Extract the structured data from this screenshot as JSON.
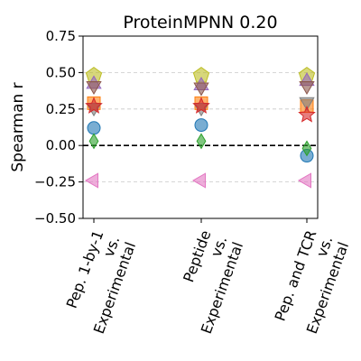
{
  "chart_data": {
    "type": "scatter",
    "title": "ProteinMPNN 0.20",
    "ylabel": "Spearman r",
    "xlabel": "",
    "ylim": [
      -0.5,
      0.75
    ],
    "yticks": [
      -0.5,
      -0.25,
      0.0,
      0.25,
      0.5,
      0.75
    ],
    "ytick_labels": [
      "−0.50",
      "−0.25",
      "0.00",
      "0.25",
      "0.50",
      "0.75"
    ],
    "grid": "horizontal-dashed",
    "reference_line": 0.0,
    "categories": [
      [
        "Pep. 1-by-1",
        "vs.",
        "Experimental"
      ],
      [
        "Peptide",
        "vs.",
        "Experimental"
      ],
      [
        "Pep. and TCR",
        "vs.",
        "Experimental"
      ]
    ],
    "series": [
      {
        "marker": "pentagon",
        "color": "#bcbd22",
        "values": [
          0.48,
          0.48,
          0.48
        ]
      },
      {
        "marker": "triangle-up",
        "color": "#9467bd",
        "values": [
          0.42,
          0.41,
          0.44
        ]
      },
      {
        "marker": "triangle-down",
        "color": "#8c564b",
        "values": [
          0.41,
          0.4,
          0.41
        ]
      },
      {
        "marker": "square",
        "color": "#ff7f0e",
        "values": [
          0.29,
          0.29,
          0.27
        ]
      },
      {
        "marker": "triangle-down",
        "color": "#7f7f7f",
        "values": [
          0.26,
          0.26,
          0.3
        ]
      },
      {
        "marker": "star",
        "color": "#d62728",
        "values": [
          0.27,
          0.27,
          0.21
        ]
      },
      {
        "marker": "circle",
        "color": "#1f77b4",
        "values": [
          0.12,
          0.14,
          -0.07
        ]
      },
      {
        "marker": "diamond",
        "color": "#2ca02c",
        "values": [
          0.03,
          0.03,
          -0.02
        ]
      },
      {
        "marker": "triangle-left",
        "color": "#e377c2",
        "values": [
          -0.24,
          -0.24,
          -0.24
        ]
      }
    ]
  }
}
